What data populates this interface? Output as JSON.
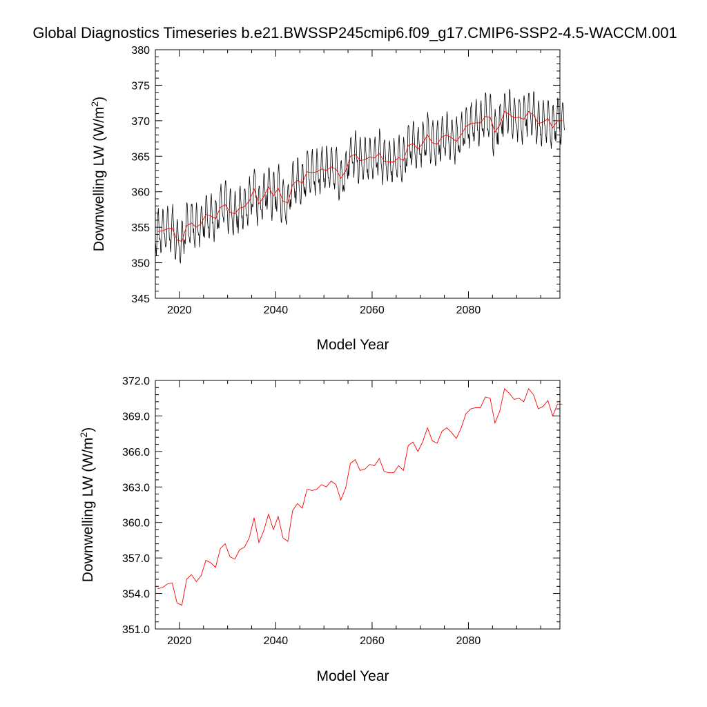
{
  "title": "Global Diagnostics Timeseries b.e21.BWSSP245cmip6.f09_g17.CMIP6-SSP2-4.5-WACCM.001",
  "colors": {
    "monthly": "#000000",
    "annual": "#ff0000"
  },
  "chart_data": [
    {
      "type": "line",
      "xlabel": "Model Year",
      "ylabel": "Downwelling LW (W/m",
      "ylabel_sup": "2",
      "ylabel_end": ")",
      "xlim": [
        2015,
        2099
      ],
      "ylim": [
        345,
        380
      ],
      "xticks": [
        "2020",
        "2040",
        "2060",
        "2080"
      ],
      "yticks": [
        "345",
        "350",
        "355",
        "360",
        "365",
        "370",
        "375",
        "380"
      ],
      "series": [
        {
          "style": "monthly seasonal cycle, amplitude approx 3 W/m2 about the annual mean",
          "color": "#000000"
        },
        {
          "style": "annual mean",
          "color": "#ff0000"
        }
      ]
    },
    {
      "type": "line",
      "xlabel": "Model Year",
      "ylabel": "Downwelling LW (W/m",
      "ylabel_sup": "2",
      "ylabel_end": ")",
      "xlim": [
        2015,
        2099
      ],
      "ylim": [
        351,
        372
      ],
      "xticks": [
        "2020",
        "2040",
        "2060",
        "2080"
      ],
      "yticks": [
        "351.0",
        "354.0",
        "357.0",
        "360.0",
        "363.0",
        "366.0",
        "369.0",
        "372.0"
      ],
      "series": [
        {
          "style": "annual mean",
          "color": "#ff0000"
        }
      ]
    }
  ],
  "annual": {
    "x": [
      2015,
      2016,
      2017,
      2018,
      2019,
      2020,
      2021,
      2022,
      2023,
      2024,
      2025,
      2026,
      2027,
      2028,
      2029,
      2030,
      2031,
      2032,
      2033,
      2034,
      2035,
      2036,
      2037,
      2038,
      2039,
      2040,
      2041,
      2042,
      2043,
      2044,
      2045,
      2046,
      2047,
      2048,
      2049,
      2050,
      2051,
      2052,
      2053,
      2054,
      2055,
      2056,
      2057,
      2058,
      2059,
      2060,
      2061,
      2062,
      2063,
      2064,
      2065,
      2066,
      2067,
      2068,
      2069,
      2070,
      2071,
      2072,
      2073,
      2074,
      2075,
      2076,
      2077,
      2078,
      2079,
      2080,
      2081,
      2082,
      2083,
      2084,
      2085,
      2086,
      2087,
      2088,
      2089,
      2090,
      2091,
      2092,
      2093,
      2094,
      2095,
      2096,
      2097,
      2098,
      2099
    ],
    "y": [
      354.4,
      354.5,
      354.8,
      354.9,
      353.2,
      353.0,
      355.2,
      355.6,
      355.0,
      355.5,
      356.8,
      356.6,
      356.2,
      357.8,
      358.2,
      357.1,
      356.9,
      357.7,
      357.9,
      358.7,
      360.4,
      358.3,
      359.3,
      360.7,
      359.4,
      360.5,
      358.7,
      358.4,
      361.0,
      361.6,
      361.2,
      362.8,
      362.7,
      362.8,
      363.2,
      363.0,
      363.5,
      363.2,
      361.9,
      362.9,
      365.0,
      365.3,
      364.4,
      364.5,
      364.9,
      364.8,
      365.4,
      364.3,
      364.2,
      364.2,
      364.8,
      364.4,
      366.5,
      366.8,
      366.0,
      366.8,
      368.0,
      366.9,
      366.7,
      367.7,
      368.0,
      367.6,
      367.1,
      368.0,
      369.2,
      369.6,
      369.7,
      369.7,
      370.6,
      370.5,
      368.4,
      369.4,
      371.3,
      370.9,
      370.4,
      370.5,
      370.2,
      371.3,
      370.8,
      369.6,
      369.8,
      370.3,
      369.0,
      370.0,
      370.0
    ]
  }
}
